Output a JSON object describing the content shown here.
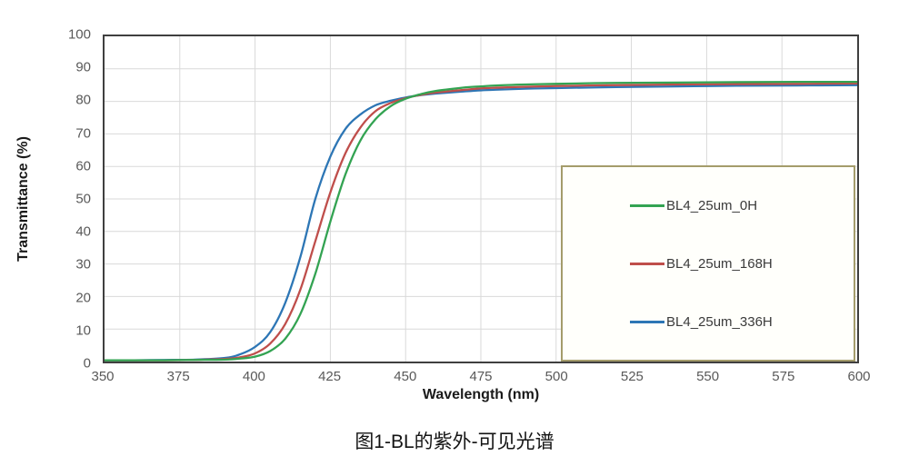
{
  "figure": {
    "caption": "图1-BL的紫外-可见光谱"
  },
  "chart_data": {
    "type": "line",
    "title": "",
    "xlabel": "Wavelength (nm)",
    "ylabel": "Transmittance (%)",
    "xlim": [
      350,
      600
    ],
    "ylim": [
      0,
      100
    ],
    "xticks": [
      350,
      375,
      400,
      425,
      450,
      475,
      500,
      525,
      550,
      575,
      600
    ],
    "yticks": [
      0,
      10,
      20,
      30,
      40,
      50,
      60,
      70,
      80,
      90,
      100
    ],
    "grid": true,
    "legend_position": "inside right, boxed",
    "x": [
      350,
      360,
      370,
      380,
      390,
      395,
      400,
      405,
      410,
      415,
      420,
      425,
      430,
      435,
      440,
      445,
      450,
      455,
      460,
      470,
      475,
      480,
      490,
      500,
      520,
      540,
      560,
      580,
      600
    ],
    "series": [
      {
        "name": "BL4_25um_0H",
        "color": "#33A352",
        "values": [
          0.4,
          0.4,
          0.4,
          0.5,
          0.6,
          0.9,
          1.5,
          3.2,
          7,
          14.5,
          27,
          43,
          57.5,
          68,
          74.5,
          78.5,
          80.8,
          82.2,
          83.2,
          84.3,
          84.6,
          84.9,
          85.2,
          85.4,
          85.7,
          85.8,
          85.9,
          86,
          86
        ]
      },
      {
        "name": "BL4_25um_168H",
        "color": "#BF4E4B",
        "values": [
          0.4,
          0.4,
          0.4,
          0.5,
          0.8,
          1.3,
          2.5,
          5.5,
          11.5,
          22,
          37,
          52,
          64,
          72,
          77,
          79.5,
          81,
          82,
          82.7,
          83.6,
          84,
          84.2,
          84.5,
          84.7,
          85,
          85.2,
          85.3,
          85.4,
          85.5
        ]
      },
      {
        "name": "BL4_25um_336H",
        "color": "#2D76B5",
        "values": [
          0.4,
          0.4,
          0.5,
          0.6,
          1.1,
          2.2,
          4.5,
          9,
          18,
          32,
          50,
          63,
          71.5,
          76,
          78.8,
          80.2,
          81.2,
          81.9,
          82.4,
          83.1,
          83.4,
          83.6,
          83.9,
          84.1,
          84.4,
          84.6,
          84.8,
          84.9,
          85
        ]
      }
    ],
    "colors": {
      "grid": "#D9D9D9",
      "axis_border": "#3F3F3F",
      "tick_label": "#595959",
      "legend_border": "#A49C6B",
      "legend_bg": "#FFFFFB"
    }
  }
}
